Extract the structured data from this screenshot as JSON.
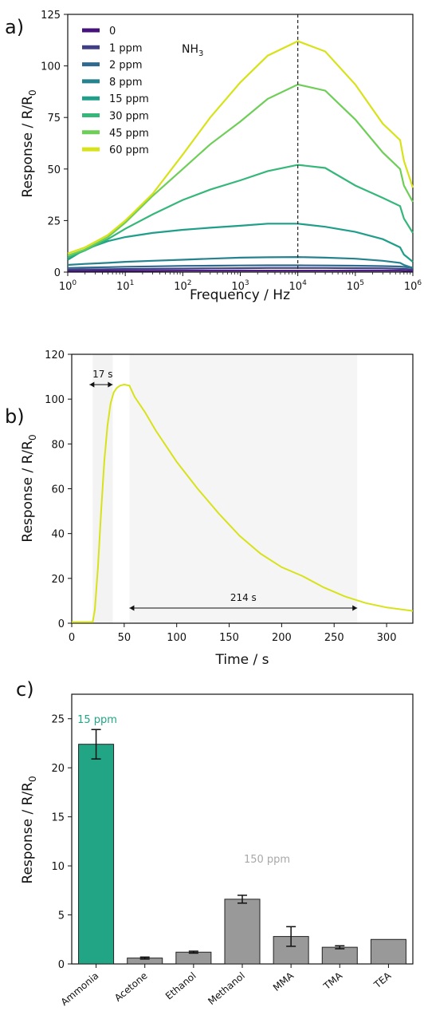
{
  "chart_data": [
    {
      "type": "line",
      "panel_label": "a)",
      "xlabel": "Frequency / Hz",
      "ylabel": "Response / R/R",
      "ylabel_sub": "0",
      "x_scale": "log",
      "xlim": [
        1,
        1000000
      ],
      "ylim": [
        0,
        125
      ],
      "yticks": [
        "0",
        "25",
        "50",
        "75",
        "100",
        "125"
      ],
      "xtick_base": "10",
      "xtick_exponents": [
        "0",
        "1",
        "2",
        "3",
        "4",
        "5",
        "6"
      ],
      "gas_label": "NH",
      "gas_sub": "3",
      "vline_x": 10000,
      "legend_position": "top-left",
      "x": [
        1,
        2,
        5,
        10,
        30,
        100,
        300,
        1000,
        3000,
        10000,
        30000,
        100000,
        300000,
        600000,
        700000,
        1000000
      ],
      "series": [
        {
          "name": "0",
          "color": "#45127a",
          "values": [
            0.5,
            0.5,
            0.6,
            0.6,
            0.6,
            0.7,
            0.7,
            0.7,
            0.7,
            0.7,
            0.7,
            0.7,
            0.7,
            0.7,
            0.6,
            0.5
          ]
        },
        {
          "name": "1 ppm",
          "color": "#413f84",
          "values": [
            1.2,
            1.3,
            1.4,
            1.5,
            1.6,
            1.7,
            1.8,
            1.9,
            2.0,
            2.0,
            2.0,
            1.9,
            1.8,
            1.6,
            1.5,
            1.3
          ]
        },
        {
          "name": "2 ppm",
          "color": "#31688e",
          "values": [
            2.0,
            2.2,
            2.4,
            2.6,
            2.8,
            3.0,
            3.1,
            3.2,
            3.3,
            3.3,
            3.2,
            3.1,
            2.9,
            2.7,
            2.5,
            2.2
          ]
        },
        {
          "name": "8 ppm",
          "color": "#26828e",
          "values": [
            3.5,
            4.0,
            4.5,
            5.0,
            5.5,
            6.0,
            6.5,
            7.0,
            7.2,
            7.3,
            7.0,
            6.5,
            5.5,
            4.5,
            3.5,
            2.0
          ]
        },
        {
          "name": "15 ppm",
          "color": "#1f9e89",
          "values": [
            6,
            11,
            15,
            17,
            19,
            20.5,
            21.5,
            22.5,
            23.5,
            23.5,
            22,
            19.5,
            16,
            12,
            8.5,
            5
          ]
        },
        {
          "name": "30 ppm",
          "color": "#35b779",
          "values": [
            7,
            10.5,
            16,
            21,
            28,
            35,
            40,
            44.5,
            49,
            52,
            50.5,
            42,
            36,
            32,
            26,
            19
          ]
        },
        {
          "name": "45 ppm",
          "color": "#6ece58",
          "values": [
            8,
            11,
            17,
            24,
            37,
            50,
            62,
            73,
            84,
            91,
            88,
            74,
            58,
            50,
            42,
            34
          ]
        },
        {
          "name": "60 ppm",
          "color": "#d8e219",
          "values": [
            9,
            12,
            18,
            25,
            38,
            57,
            75,
            92,
            105,
            112,
            107,
            91,
            72,
            64,
            54,
            41
          ]
        }
      ]
    },
    {
      "type": "line",
      "panel_label": "b)",
      "xlabel": "Time / s",
      "ylabel": "Response / R/R",
      "ylabel_sub": "0",
      "xlim": [
        0,
        325
      ],
      "ylim": [
        0,
        120
      ],
      "xticks": [
        "0",
        "50",
        "100",
        "150",
        "200",
        "250",
        "300"
      ],
      "yticks": [
        "0",
        "20",
        "40",
        "60",
        "80",
        "100",
        "120"
      ],
      "line_color": "#d8e219",
      "rise_region": [
        20,
        39
      ],
      "recovery_region": [
        55,
        272
      ],
      "annotation_rise": "17 s",
      "annotation_recovery": "214 s",
      "x": [
        0,
        10,
        20,
        22,
        25,
        28,
        31,
        34,
        37,
        40,
        43,
        46,
        50,
        55,
        60,
        70,
        80,
        90,
        100,
        120,
        140,
        160,
        180,
        200,
        220,
        240,
        260,
        280,
        300,
        325
      ],
      "values": [
        0.5,
        0.5,
        0.5,
        6,
        25,
        50,
        72,
        88,
        98,
        103,
        105,
        106,
        106.5,
        106,
        101,
        94,
        86,
        79,
        72,
        60,
        49,
        39,
        31,
        25,
        21,
        16,
        12,
        9,
        7,
        5.5
      ]
    },
    {
      "type": "bar",
      "panel_label": "c)",
      "ylabel": "Response / R/R",
      "ylabel_sub": "0",
      "ylim": [
        0,
        27.5
      ],
      "yticks": [
        "0",
        "5",
        "10",
        "15",
        "20",
        "25"
      ],
      "categories": [
        "Ammonia",
        "Acetone",
        "Ethanol",
        "Methanol",
        "MMA",
        "TMA",
        "TEA"
      ],
      "values": [
        22.4,
        0.6,
        1.2,
        6.6,
        2.8,
        1.7,
        2.5
      ],
      "errors": [
        1.5,
        0.1,
        0.1,
        0.4,
        1.0,
        0.15,
        0.0
      ],
      "colors": [
        "#21a585",
        "#999999",
        "#999999",
        "#999999",
        "#999999",
        "#999999",
        "#999999"
      ],
      "annotation_ammonia": "15 ppm",
      "annotation_ammonia_color": "#21a585",
      "annotation_others": "150 ppm",
      "annotation_others_color": "#a8a8a8"
    }
  ]
}
